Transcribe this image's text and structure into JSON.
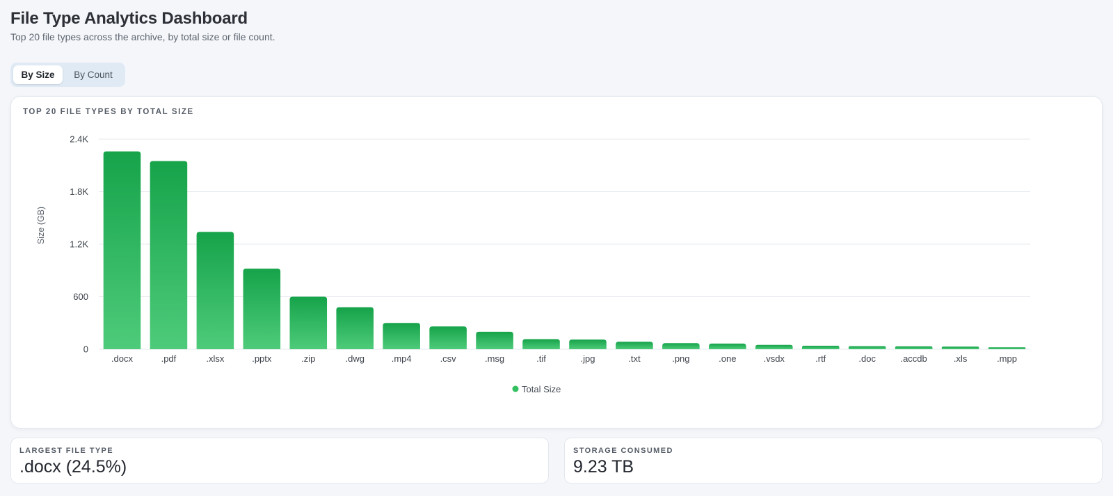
{
  "header": {
    "title": "File Type Analytics Dashboard",
    "subtitle": "Top 20 file types across the archive, by total size or file count."
  },
  "toggle": {
    "options": [
      "By Size",
      "By Count"
    ],
    "selected": "By Size"
  },
  "chart_card": {
    "heading": "TOP 20 FILE TYPES BY TOTAL SIZE"
  },
  "colors": {
    "bar_top": "#16a34a",
    "bar_bottom": "#4ecb7a",
    "legend_dot": "#34c060"
  },
  "chart_data": {
    "type": "bar",
    "title": "TOP 20 FILE TYPES BY TOTAL SIZE",
    "xlabel": "",
    "ylabel": "Size (GB)",
    "ylim": [
      0,
      2400
    ],
    "yticks": [
      0,
      600,
      1200,
      1800,
      2400
    ],
    "ytick_labels": [
      "0",
      "600",
      "1.2K",
      "1.8K",
      "2.4K"
    ],
    "grid": true,
    "legend_position": "bottom",
    "categories": [
      ".docx",
      ".pdf",
      ".xlsx",
      ".pptx",
      ".zip",
      ".dwg",
      ".mp4",
      ".csv",
      ".msg",
      ".tif",
      ".jpg",
      ".txt",
      ".png",
      ".one",
      ".vsdx",
      ".rtf",
      ".doc",
      ".accdb",
      ".xls",
      ".mpp"
    ],
    "series": [
      {
        "name": "Total Size",
        "values": [
          2260,
          2150,
          1340,
          920,
          600,
          480,
          300,
          260,
          200,
          115,
          110,
          85,
          70,
          65,
          50,
          40,
          35,
          33,
          30,
          22
        ]
      }
    ]
  },
  "stats": [
    {
      "label": "LARGEST FILE TYPE",
      "value": ".docx (24.5%)"
    },
    {
      "label": "STORAGE CONSUMED",
      "value": "9.23 TB"
    }
  ]
}
